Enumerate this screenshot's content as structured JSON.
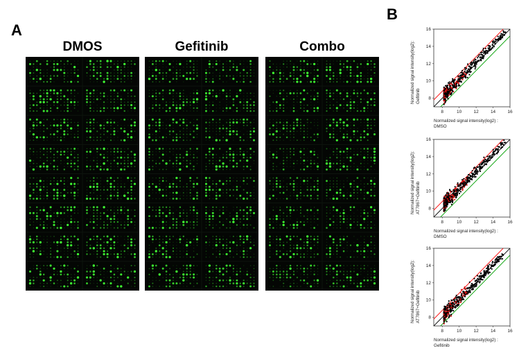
{
  "panel_a": {
    "letter": "A",
    "arrays": [
      {
        "title": "DMOS"
      },
      {
        "title": "Gefitinib"
      },
      {
        "title": "Combo"
      }
    ]
  },
  "panel_b": {
    "letter": "B",
    "plots": [
      {
        "ylabel_line1": "Normalized signal intensity(log2):",
        "ylabel_line2": "Gefitinib",
        "xlabel_line1": "Normalized signal intensity(log2) :",
        "xlabel_line2": "DMSO"
      },
      {
        "ylabel_line1": "Normalized signal intensity(log2):",
        "ylabel_line2": "AT7867+Gefitinib",
        "xlabel_line1": "Normalized signal intensity(log2) :",
        "xlabel_line2": "DMSO"
      },
      {
        "ylabel_line1": "Normalized signal intensity(log2):",
        "ylabel_line2": "AT7867+Gefitinib",
        "xlabel_line1": "Normalized signal intensity(log2) :",
        "xlabel_line2": "Gefitinib"
      }
    ]
  },
  "chart_data": [
    {
      "type": "scatter",
      "xlim": [
        7,
        16
      ],
      "ylim": [
        7,
        16
      ],
      "x_ticks": [
        "8",
        "10",
        "12",
        "14",
        "16"
      ],
      "y_ticks": [
        "8",
        "10",
        "12",
        "14",
        "16"
      ],
      "lines": [
        {
          "color": "#ff0000",
          "offset": 0.8
        },
        {
          "color": "#000000",
          "offset": 0
        },
        {
          "color": "#00a000",
          "offset": -0.8
        }
      ],
      "point_colors": [
        "#000000",
        "#d01010"
      ],
      "cloud": {
        "x_range": [
          8.2,
          15.5
        ],
        "center_offset": 0.2
      }
    },
    {
      "type": "scatter",
      "xlim": [
        7,
        16
      ],
      "ylim": [
        7,
        16
      ],
      "x_ticks": [
        "8",
        "10",
        "12",
        "14",
        "16"
      ],
      "y_ticks": [
        "8",
        "10",
        "12",
        "14",
        "16"
      ],
      "lines": [
        {
          "color": "#ff0000",
          "offset": 0.8
        },
        {
          "color": "#000000",
          "offset": 0
        },
        {
          "color": "#00a000",
          "offset": -0.8
        }
      ],
      "point_colors": [
        "#000000",
        "#d01010"
      ],
      "cloud": {
        "x_range": [
          8.2,
          15.5
        ],
        "center_offset": 0.3
      }
    },
    {
      "type": "scatter",
      "xlim": [
        7,
        16
      ],
      "ylim": [
        7,
        16
      ],
      "x_ticks": [
        "8",
        "10",
        "12",
        "14",
        "16"
      ],
      "y_ticks": [
        "8",
        "10",
        "12",
        "14",
        "16"
      ],
      "lines": [
        {
          "color": "#ff0000",
          "offset": 0.8
        },
        {
          "color": "#000000",
          "offset": 0
        },
        {
          "color": "#00a000",
          "offset": -0.8
        }
      ],
      "point_colors": [
        "#000000",
        "#d01010"
      ],
      "cloud": {
        "x_range": [
          8.2,
          15.2
        ],
        "center_offset": 0.1
      }
    }
  ]
}
